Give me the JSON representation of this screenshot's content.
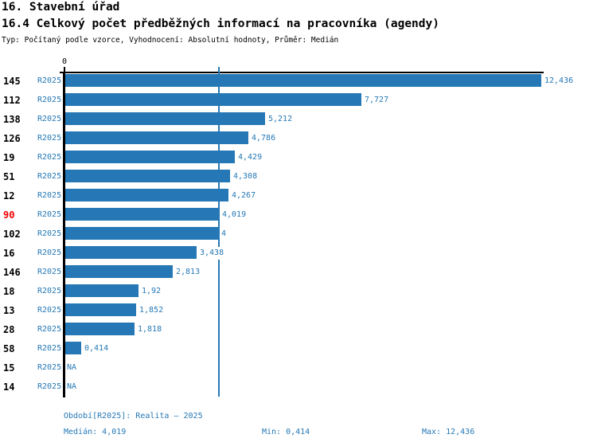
{
  "header": {
    "title_line1": "16. Stavební úřad",
    "title_line2": "16.4 Celkový počet předběžných informací na pracovníka (agendy)",
    "subtitle": "Typ: Počítaný podle vzorce, Vyhodnocení: Absolutní hodnoty, Průměr: Medián"
  },
  "colors": {
    "bar": "#2578b5",
    "blue_text": "#2578b5",
    "median_line": "#2578b5",
    "highlight_red": "#ee0000",
    "axis": "#000000"
  },
  "chart_data": {
    "type": "bar",
    "orientation": "horizontal",
    "title": "16.4 Celkový počet předběžných informací na pracovníka (agendy)",
    "series_label": "R2025",
    "axis_zero_label": "0",
    "xlim": [
      0,
      12.436
    ],
    "median": 4.019,
    "grid": false,
    "rows": [
      {
        "category": "145",
        "period": "R2025",
        "value": 12.436,
        "label": "12,436",
        "highlight": false
      },
      {
        "category": "112",
        "period": "R2025",
        "value": 7.727,
        "label": "7,727",
        "highlight": false
      },
      {
        "category": "138",
        "period": "R2025",
        "value": 5.212,
        "label": "5,212",
        "highlight": false
      },
      {
        "category": "126",
        "period": "R2025",
        "value": 4.786,
        "label": "4,786",
        "highlight": false
      },
      {
        "category": "19",
        "period": "R2025",
        "value": 4.429,
        "label": "4,429",
        "highlight": false
      },
      {
        "category": "51",
        "period": "R2025",
        "value": 4.308,
        "label": "4,308",
        "highlight": false
      },
      {
        "category": "12",
        "period": "R2025",
        "value": 4.267,
        "label": "4,267",
        "highlight": false
      },
      {
        "category": "90",
        "period": "R2025",
        "value": 4.019,
        "label": "4,019",
        "highlight": true
      },
      {
        "category": "102",
        "period": "R2025",
        "value": 4,
        "label": "4",
        "highlight": false
      },
      {
        "category": "16",
        "period": "R2025",
        "value": 3.438,
        "label": "3,438",
        "highlight": false
      },
      {
        "category": "146",
        "period": "R2025",
        "value": 2.813,
        "label": "2,813",
        "highlight": false
      },
      {
        "category": "18",
        "period": "R2025",
        "value": 1.92,
        "label": "1,92",
        "highlight": false
      },
      {
        "category": "13",
        "period": "R2025",
        "value": 1.852,
        "label": "1,852",
        "highlight": false
      },
      {
        "category": "28",
        "period": "R2025",
        "value": 1.818,
        "label": "1,818",
        "highlight": false
      },
      {
        "category": "58",
        "period": "R2025",
        "value": 0.414,
        "label": "0,414",
        "highlight": false
      },
      {
        "category": "15",
        "period": "R2025",
        "value": null,
        "label": "NA",
        "highlight": false
      },
      {
        "category": "14",
        "period": "R2025",
        "value": null,
        "label": "NA",
        "highlight": false
      }
    ]
  },
  "footer": {
    "period_line": "Období[R2025]: Realita – 2025",
    "median_label": "Medián: 4,019",
    "min_label": "Min: 0,414",
    "max_label": "Max: 12,436"
  }
}
